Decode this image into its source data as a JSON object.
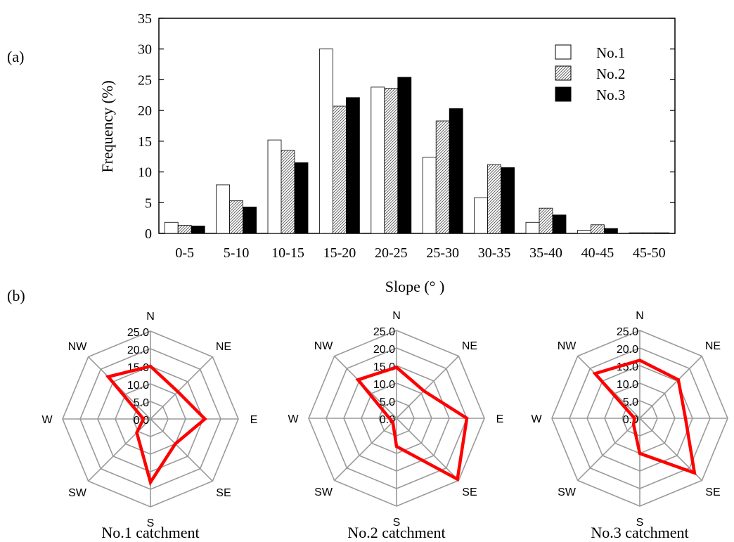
{
  "panel_labels": {
    "a": "(a)",
    "b": "(b)"
  },
  "chart_data": [
    {
      "type": "bar",
      "xlabel": "Slope (°  )",
      "ylabel": "Frequency (%)",
      "ylim": [
        0,
        35
      ],
      "yticks": [
        0,
        5,
        10,
        15,
        20,
        25,
        30,
        35
      ],
      "grid": false,
      "legend_position": "top-right",
      "categories": [
        "0-5",
        "5-10",
        "10-15",
        "15-20",
        "20-25",
        "25-30",
        "30-35",
        "35-40",
        "40-45",
        "45-50"
      ],
      "series": [
        {
          "name": "No.1",
          "fill": "white",
          "values": [
            1.8,
            7.9,
            15.2,
            30.0,
            23.8,
            12.4,
            5.8,
            1.8,
            0.5,
            0.1
          ]
        },
        {
          "name": "No.2",
          "fill": "hatched",
          "values": [
            1.3,
            5.3,
            13.5,
            20.7,
            23.6,
            18.3,
            11.2,
            4.1,
            1.4,
            0.1
          ]
        },
        {
          "name": "No.3",
          "fill": "black",
          "values": [
            1.2,
            4.3,
            11.5,
            22.1,
            25.4,
            20.3,
            10.7,
            3.0,
            0.8,
            0.1
          ]
        }
      ]
    },
    {
      "type": "radar",
      "title": "No.1 catchment",
      "directions": [
        "N",
        "NE",
        "E",
        "SE",
        "S",
        "SW",
        "W",
        "NW"
      ],
      "rlim": [
        0,
        25
      ],
      "rticks": [
        "0.0",
        "5.0",
        "10.0",
        "15.0",
        "20.0",
        "25.0"
      ],
      "line_color": "#ff0000",
      "values": [
        15.0,
        11.0,
        15.5,
        10.0,
        18.0,
        5.5,
        2.0,
        17.0
      ]
    },
    {
      "type": "radar",
      "title": "No.2 catchment",
      "directions": [
        "N",
        "NE",
        "E",
        "SE",
        "S",
        "SW",
        "W",
        "NW"
      ],
      "rlim": [
        0,
        25
      ],
      "rticks": [
        "0.0",
        "5.0",
        "10.0",
        "15.0",
        "20.0",
        "25.0"
      ],
      "line_color": "#ff0000",
      "values": [
        14.5,
        11.0,
        20.0,
        24.5,
        8.0,
        1.5,
        2.0,
        15.5
      ]
    },
    {
      "type": "radar",
      "title": "No.3 catchment",
      "directions": [
        "N",
        "NE",
        "E",
        "SE",
        "S",
        "SW",
        "W",
        "NW"
      ],
      "rlim": [
        0,
        25
      ],
      "rticks": [
        "0.0",
        "5.0",
        "10.0",
        "15.0",
        "20.0",
        "25.0"
      ],
      "line_color": "#ff0000",
      "values": [
        16.5,
        15.5,
        13.0,
        22.0,
        10.0,
        2.5,
        1.5,
        18.0
      ]
    }
  ]
}
